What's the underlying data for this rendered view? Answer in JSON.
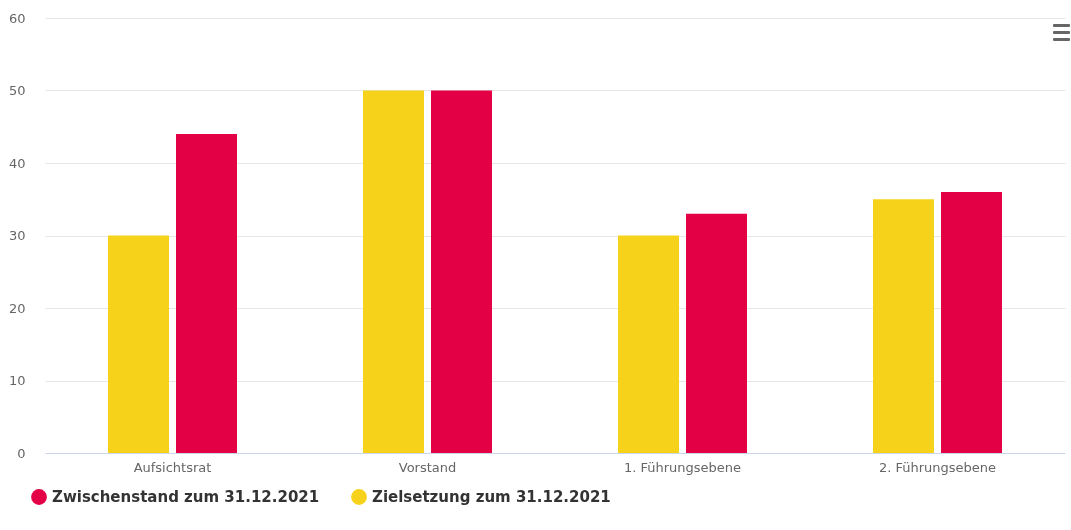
{
  "chart_data": {
    "type": "bar",
    "categories": [
      "Aufsichtsrat",
      "Vorstand",
      "1. Führungsebene",
      "2. Führungsebene"
    ],
    "series": [
      {
        "name": "Zielsetzung zum 31.12.2021",
        "color": "#f6d31a",
        "values": [
          30,
          50,
          30,
          35
        ]
      },
      {
        "name": "Zwischenstand zum 31.12.2021",
        "color": "#e30045",
        "values": [
          44,
          50,
          33,
          36
        ]
      }
    ],
    "ylim": [
      0,
      60
    ],
    "yticks": [
      0,
      10,
      20,
      30,
      40,
      50,
      60
    ],
    "grid": "y",
    "legend": "bottom left"
  }
}
